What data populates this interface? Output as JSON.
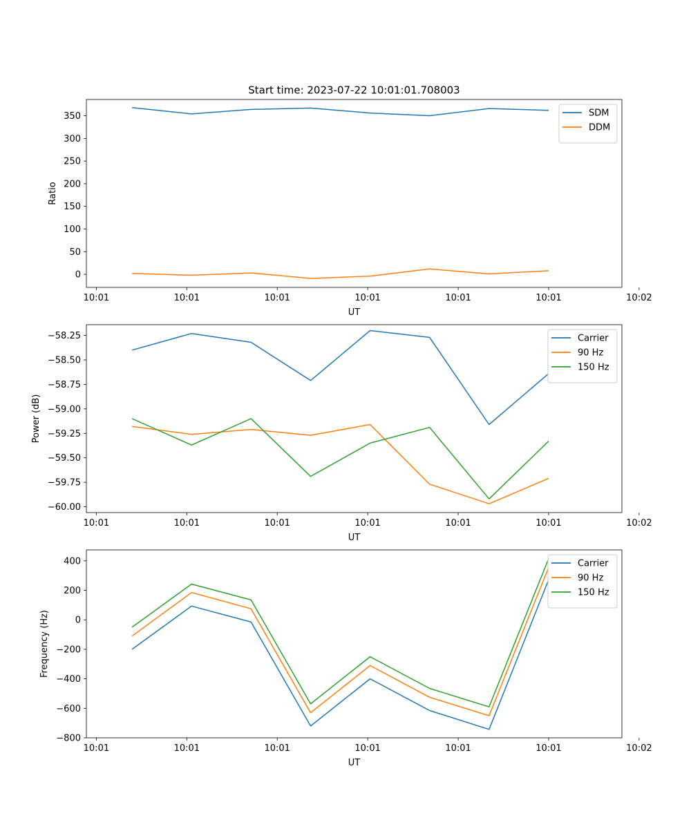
{
  "figure": {
    "title": "Start time: 2023-07-22 10:01:01.708003"
  },
  "chart_data": [
    {
      "type": "line",
      "title": "Start time: 2023-07-22 10:01:01.708003",
      "xlabel": "UT",
      "ylabel": "Ratio",
      "x": [
        1,
        2,
        3,
        4,
        5,
        6,
        7,
        8
      ],
      "xlim": [
        0.233,
        9.231
      ],
      "ylim": [
        -28.8,
        385.9
      ],
      "xticks": [
        0.4,
        1.92,
        3.44,
        4.96,
        6.48,
        8.0,
        9.52
      ],
      "xtick_labels": [
        "10:01",
        "10:01",
        "10:01",
        "10:01",
        "10:01",
        "10:01",
        "10:02"
      ],
      "yticks": [
        0,
        50,
        100,
        150,
        200,
        250,
        300,
        350
      ],
      "ytick_labels": [
        "0",
        "50",
        "100",
        "150",
        "200",
        "250",
        "300",
        "350"
      ],
      "grid": false,
      "legend": "upper right",
      "series": [
        {
          "name": "SDM",
          "color": "#1f77b4",
          "values": [
            368,
            354,
            364,
            367,
            356,
            350,
            366,
            362
          ]
        },
        {
          "name": "DDM",
          "color": "#ff7f0e",
          "values": [
            2,
            -2,
            3,
            -9,
            -4,
            12,
            1,
            8
          ]
        }
      ]
    },
    {
      "type": "line",
      "title": "",
      "xlabel": "UT",
      "ylabel": "Power (dB)",
      "x": [
        1,
        2,
        3,
        4,
        5,
        6,
        7,
        8
      ],
      "xlim": [
        0.233,
        9.231
      ],
      "ylim": [
        -60.06,
        -58.14
      ],
      "xticks": [
        0.4,
        1.92,
        3.44,
        4.96,
        6.48,
        8.0,
        9.52
      ],
      "xtick_labels": [
        "10:01",
        "10:01",
        "10:01",
        "10:01",
        "10:01",
        "10:01",
        "10:02"
      ],
      "yticks": [
        -60.0,
        -59.75,
        -59.5,
        -59.25,
        -59.0,
        -58.75,
        -58.5,
        -58.25
      ],
      "ytick_labels": [
        "−60.00",
        "−59.75",
        "−59.50",
        "−59.25",
        "−59.00",
        "−58.75",
        "−58.50",
        "−58.25"
      ],
      "grid": false,
      "legend": "upper right",
      "series": [
        {
          "name": "Carrier",
          "color": "#1f77b4",
          "values": [
            -58.4,
            -58.23,
            -58.32,
            -58.71,
            -58.2,
            -58.27,
            -59.16,
            -58.64
          ]
        },
        {
          "name": "90 Hz",
          "color": "#ff7f0e",
          "values": [
            -59.18,
            -59.26,
            -59.21,
            -59.27,
            -59.16,
            -59.77,
            -59.97,
            -59.71
          ]
        },
        {
          "name": "150 Hz",
          "color": "#2ca02c",
          "values": [
            -59.1,
            -59.37,
            -59.1,
            -59.69,
            -59.35,
            -59.19,
            -59.92,
            -59.33
          ]
        }
      ]
    },
    {
      "type": "line",
      "title": "",
      "xlabel": "UT",
      "ylabel": "Frequency (Hz)",
      "x": [
        1,
        2,
        3,
        4,
        5,
        6,
        7,
        8
      ],
      "xlim": [
        0.233,
        9.231
      ],
      "ylim": [
        -800,
        474
      ],
      "xticks": [
        0.4,
        1.92,
        3.44,
        4.96,
        6.48,
        8.0,
        9.52
      ],
      "xtick_labels": [
        "10:01",
        "10:01",
        "10:01",
        "10:01",
        "10:01",
        "10:01",
        "10:02"
      ],
      "yticks": [
        -800,
        -600,
        -400,
        -200,
        0,
        200,
        400
      ],
      "ytick_labels": [
        "−800",
        "−600",
        "−400",
        "−200",
        "0",
        "200",
        "400"
      ],
      "grid": false,
      "legend": "upper right",
      "series": [
        {
          "name": "Carrier",
          "color": "#1f77b4",
          "values": [
            -200,
            93,
            -15,
            -720,
            -400,
            -615,
            -743,
            272
          ]
        },
        {
          "name": "90 Hz",
          "color": "#ff7f0e",
          "values": [
            -110,
            185,
            75,
            -630,
            -310,
            -525,
            -650,
            355
          ]
        },
        {
          "name": "150 Hz",
          "color": "#2ca02c",
          "values": [
            -50,
            242,
            135,
            -570,
            -250,
            -465,
            -590,
            415
          ]
        }
      ]
    }
  ]
}
